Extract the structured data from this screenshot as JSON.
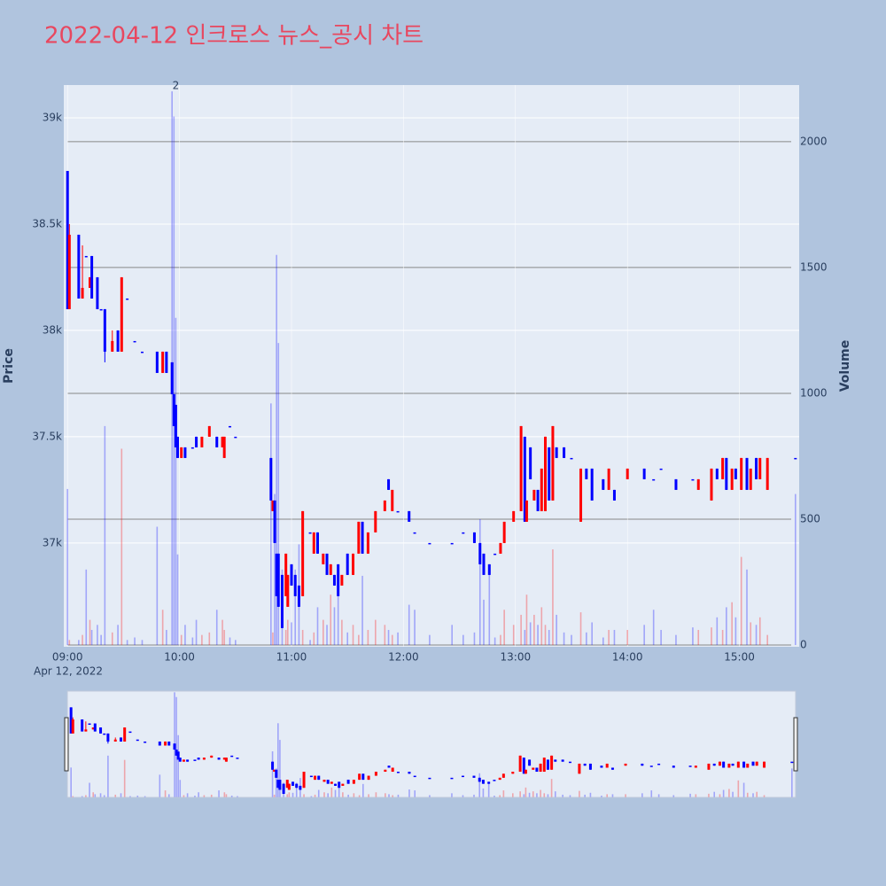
{
  "chart_data": {
    "type": "candlestick",
    "title": "2022-04-12 인크로스 뉴스_공시 차트",
    "date_label": "Apr 12, 2022",
    "y_label": "Price",
    "y2_label": "Volume",
    "increasing_color": "#ff0000",
    "decreasing_color": "#0000ff",
    "grid": true,
    "xlim": [
      "08:58",
      "15:32"
    ],
    "xticks": [
      "09:00",
      "10:00",
      "11:00",
      "12:00",
      "13:00",
      "14:00",
      "15:00"
    ],
    "ylim": [
      36512,
      39154
    ],
    "yticks": [
      {
        "value": 37000,
        "label": "37k"
      },
      {
        "value": 37500,
        "label": "37.5k"
      },
      {
        "value": 38000,
        "label": "38k"
      },
      {
        "value": 38500,
        "label": "38.5k"
      },
      {
        "value": 39000,
        "label": "39k"
      }
    ],
    "y2lim": [
      -7,
      2225
    ],
    "y2ticks": [
      0,
      500,
      1000,
      1500,
      2000
    ],
    "annotations": [
      {
        "x": "09:58",
        "text": "2"
      }
    ],
    "x": [
      "09:00",
      "09:01",
      "09:06",
      "09:08",
      "09:10",
      "09:12",
      "09:13",
      "09:16",
      "09:18",
      "09:20",
      "09:24",
      "09:27",
      "09:29",
      "09:32",
      "09:36",
      "09:40",
      "09:48",
      "09:51",
      "09:53",
      "09:56",
      "09:57",
      "09:58",
      "09:59",
      "10:01",
      "10:03",
      "10:07",
      "10:09",
      "10:12",
      "10:16",
      "10:20",
      "10:23",
      "10:24",
      "10:27",
      "10:30",
      "10:49",
      "10:50",
      "10:51",
      "10:52",
      "10:53",
      "10:55",
      "10:57",
      "10:58",
      "11:00",
      "11:02",
      "11:04",
      "11:06",
      "11:10",
      "11:12",
      "11:14",
      "11:17",
      "11:19",
      "11:21",
      "11:23",
      "11:25",
      "11:27",
      "11:30",
      "11:33",
      "11:36",
      "11:38",
      "11:41",
      "11:45",
      "11:50",
      "11:52",
      "11:54",
      "11:57",
      "12:03",
      "12:06",
      "12:14",
      "12:26",
      "12:32",
      "12:38",
      "12:41",
      "12:43",
      "12:46",
      "12:49",
      "12:52",
      "12:54",
      "12:59",
      "13:03",
      "13:05",
      "13:06",
      "13:08",
      "13:10",
      "13:12",
      "13:14",
      "13:16",
      "13:18",
      "13:20",
      "13:22",
      "13:26",
      "13:30",
      "13:35",
      "13:38",
      "13:41",
      "13:47",
      "13:50",
      "13:53",
      "14:00",
      "14:09",
      "14:14",
      "14:18",
      "14:26",
      "14:35",
      "14:38",
      "14:45",
      "14:48",
      "14:51",
      "14:53",
      "14:56",
      "14:58",
      "15:01",
      "15:04",
      "15:06",
      "15:09",
      "15:11",
      "15:15",
      "15:30"
    ],
    "open": [
      38750,
      38100,
      38450,
      38150,
      38350,
      38200,
      38350,
      38250,
      38100,
      38100,
      37900,
      38000,
      37900,
      38150,
      37950,
      37900,
      37900,
      37800,
      37900,
      37850,
      37700,
      37650,
      37500,
      37400,
      37450,
      37450,
      37500,
      37450,
      37500,
      37500,
      37450,
      37400,
      37550,
      37500,
      37400,
      37150,
      37200,
      36950,
      36950,
      36850,
      36750,
      36700,
      36900,
      36850,
      36800,
      36750,
      37050,
      36950,
      37050,
      36900,
      36950,
      36850,
      36850,
      36900,
      36800,
      36950,
      36850,
      36950,
      37100,
      36950,
      37050,
      37150,
      37300,
      37150,
      37150,
      37150,
      37050,
      37000,
      37000,
      37050,
      37050,
      37000,
      36950,
      36900,
      36950,
      36950,
      37000,
      37100,
      37150,
      37500,
      37100,
      37450,
      37200,
      37250,
      37150,
      37150,
      37450,
      37200,
      37450,
      37450,
      37400,
      37100,
      37350,
      37350,
      37300,
      37250,
      37250,
      37300,
      37350,
      37300,
      37350,
      37300,
      37300,
      37250,
      37200,
      37350,
      37300,
      37400,
      37250,
      37350,
      37250,
      37400,
      37250,
      37400,
      37300,
      37250,
      37400
    ],
    "high": [
      38750,
      38500,
      38450,
      38400,
      38350,
      38250,
      38350,
      38250,
      38100,
      38100,
      38000,
      38000,
      38250,
      38150,
      37950,
      37900,
      37900,
      37900,
      37900,
      37850,
      37700,
      37650,
      37500,
      37450,
      37450,
      37450,
      37500,
      37500,
      37550,
      37500,
      37500,
      37500,
      37550,
      37500,
      37400,
      37200,
      37200,
      36950,
      36950,
      36850,
      36950,
      36850,
      36900,
      36850,
      36800,
      37150,
      37050,
      37050,
      37050,
      36950,
      36950,
      36900,
      36850,
      36900,
      36850,
      36950,
      36950,
      37100,
      37100,
      37050,
      37150,
      37200,
      37300,
      37250,
      37150,
      37150,
      37050,
      37000,
      37000,
      37050,
      37050,
      37000,
      36950,
      36900,
      36950,
      37000,
      37100,
      37150,
      37550,
      37500,
      37200,
      37450,
      37250,
      37250,
      37350,
      37500,
      37450,
      37550,
      37450,
      37450,
      37400,
      37350,
      37350,
      37350,
      37300,
      37350,
      37250,
      37350,
      37350,
      37300,
      37350,
      37300,
      37300,
      37300,
      37350,
      37350,
      37400,
      37400,
      37350,
      37350,
      37400,
      37400,
      37350,
      37400,
      37400,
      37400,
      37400
    ],
    "low": [
      38100,
      38100,
      38150,
      38150,
      38350,
      38200,
      38150,
      38100,
      38100,
      37850,
      37900,
      37900,
      37900,
      38150,
      37950,
      37900,
      37800,
      37800,
      37800,
      37700,
      37550,
      37450,
      37400,
      37400,
      37400,
      37450,
      37450,
      37450,
      37500,
      37450,
      37450,
      37400,
      37550,
      37500,
      37200,
      37150,
      37000,
      36750,
      36700,
      36600,
      36750,
      36700,
      36800,
      36750,
      36700,
      36750,
      37050,
      36950,
      36950,
      36900,
      36850,
      36850,
      36800,
      36750,
      36800,
      36850,
      36850,
      36950,
      36950,
      36950,
      37050,
      37150,
      37250,
      37150,
      37150,
      37100,
      37050,
      37000,
      37000,
      37050,
      37000,
      36900,
      36850,
      36850,
      36950,
      36950,
      37000,
      37100,
      37150,
      37100,
      37100,
      37300,
      37200,
      37150,
      37150,
      37150,
      37200,
      37200,
      37400,
      37400,
      37400,
      37100,
      37300,
      37200,
      37250,
      37250,
      37200,
      37300,
      37300,
      37300,
      37350,
      37250,
      37300,
      37250,
      37200,
      37300,
      37300,
      37250,
      37250,
      37300,
      37250,
      37250,
      37250,
      37300,
      37300,
      37250,
      37400
    ],
    "close": [
      38100,
      38450,
      38150,
      38200,
      38350,
      38250,
      38150,
      38100,
      38100,
      37900,
      37950,
      37900,
      38250,
      38150,
      37950,
      37900,
      37800,
      37900,
      37800,
      37700,
      37550,
      37450,
      37400,
      37450,
      37400,
      37450,
      37450,
      37500,
      37550,
      37450,
      37500,
      37500,
      37550,
      37500,
      37200,
      37200,
      37000,
      36750,
      36700,
      36600,
      36950,
      36850,
      36800,
      36750,
      36700,
      37150,
      37050,
      37050,
      36950,
      36950,
      36850,
      36900,
      36800,
      36750,
      36850,
      36850,
      36950,
      37100,
      36950,
      37050,
      37150,
      37200,
      37250,
      37250,
      37150,
      37100,
      37050,
      37000,
      37000,
      37050,
      37000,
      36900,
      36850,
      36850,
      36950,
      37000,
      37100,
      37150,
      37550,
      37100,
      37200,
      37300,
      37250,
      37150,
      37350,
      37500,
      37200,
      37550,
      37400,
      37400,
      37400,
      37350,
      37300,
      37200,
      37250,
      37350,
      37200,
      37350,
      37300,
      37300,
      37350,
      37250,
      37300,
      37300,
      37350,
      37300,
      37400,
      37250,
      37350,
      37300,
      37400,
      37250,
      37350,
      37300,
      37400,
      37400,
      37400
    ],
    "volume": [
      620,
      20,
      20,
      40,
      300,
      100,
      60,
      80,
      40,
      870,
      50,
      80,
      780,
      20,
      30,
      20,
      470,
      140,
      60,
      2200,
      2100,
      1300,
      360,
      40,
      80,
      30,
      100,
      40,
      50,
      140,
      100,
      60,
      30,
      20,
      960,
      50,
      600,
      1550,
      1200,
      300,
      60,
      100,
      90,
      300,
      400,
      60,
      20,
      50,
      150,
      100,
      80,
      200,
      150,
      280,
      100,
      50,
      80,
      40,
      275,
      60,
      100,
      80,
      60,
      40,
      50,
      160,
      140,
      40,
      80,
      40,
      50,
      500,
      180,
      300,
      30,
      40,
      140,
      80,
      120,
      60,
      200,
      90,
      120,
      80,
      150,
      80,
      60,
      380,
      120,
      50,
      40,
      130,
      50,
      90,
      30,
      60,
      60,
      60,
      80,
      140,
      60,
      40,
      70,
      60,
      70,
      110,
      60,
      150,
      170,
      110,
      350,
      300,
      90,
      80,
      110,
      40,
      600
    ]
  }
}
